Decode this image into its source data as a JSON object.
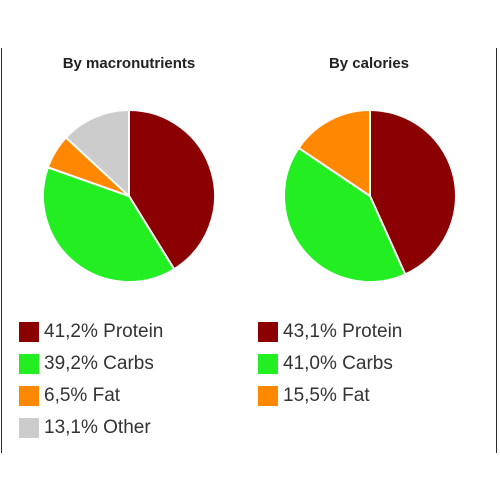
{
  "chart_data": [
    {
      "type": "pie",
      "title": "By macronutrients",
      "slices": [
        {
          "label": "41,2% Protein",
          "value": 41.2,
          "color": "#8b0000"
        },
        {
          "label": "39,2% Carbs",
          "value": 39.2,
          "color": "#22ee22"
        },
        {
          "label": "6,5% Fat",
          "value": 6.5,
          "color": "#ff8800"
        },
        {
          "label": "13,1% Other",
          "value": 13.1,
          "color": "#cccccc"
        }
      ],
      "start_angle": 0,
      "direction": "clockwise",
      "legend": "bottom"
    },
    {
      "type": "pie",
      "title": "By calories",
      "slices": [
        {
          "label": "43,1% Protein",
          "value": 43.1,
          "color": "#8b0000"
        },
        {
          "label": "41,0% Carbs",
          "value": 41.0,
          "color": "#22ee22"
        },
        {
          "label": "15,5% Fat",
          "value": 15.5,
          "color": "#ff8800"
        }
      ],
      "start_angle": 0,
      "direction": "clockwise",
      "legend": "bottom"
    }
  ]
}
